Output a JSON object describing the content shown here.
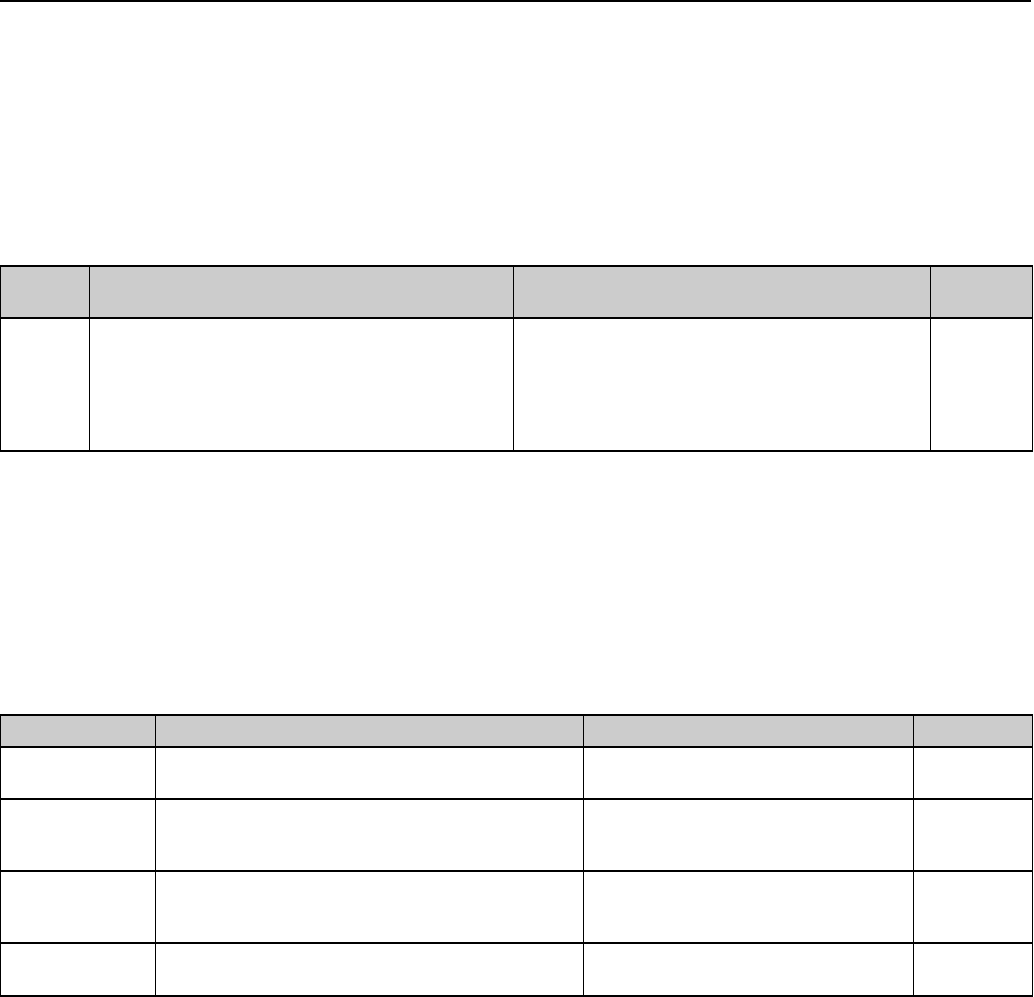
{
  "colors": {
    "header_background": "#cccccc",
    "border": "#000000"
  },
  "table_1": {
    "header": [
      "",
      "",
      "",
      ""
    ],
    "rows": [
      [
        "",
        "",
        "",
        ""
      ]
    ]
  },
  "table_2": {
    "header": [
      "",
      "",
      "",
      ""
    ],
    "rows": [
      [
        "",
        "",
        "",
        ""
      ],
      [
        "",
        "",
        "",
        ""
      ],
      [
        "",
        "",
        "",
        ""
      ],
      [
        "",
        "",
        "",
        ""
      ]
    ]
  }
}
